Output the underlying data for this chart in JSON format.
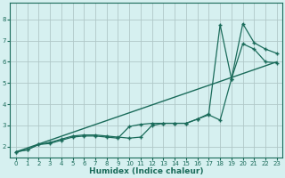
{
  "xlabel": "Humidex (Indice chaleur)",
  "bg_color": "#d6f0f0",
  "grid_color": "#b0c8c8",
  "line_color": "#1a6b5a",
  "xlim": [
    -0.5,
    23.5
  ],
  "ylim": [
    1.5,
    8.8
  ],
  "yticks": [
    2,
    3,
    4,
    5,
    6,
    7,
    8
  ],
  "xticks": [
    0,
    1,
    2,
    3,
    4,
    5,
    6,
    7,
    8,
    9,
    10,
    11,
    12,
    13,
    14,
    15,
    16,
    17,
    18,
    19,
    20,
    21,
    22,
    23
  ],
  "line1_x": [
    0,
    23
  ],
  "line1_y": [
    1.75,
    6.0
  ],
  "line2_x": [
    0,
    1,
    2,
    3,
    4,
    5,
    6,
    7,
    8,
    9,
    10,
    11,
    12,
    13,
    14,
    15,
    16,
    17,
    18,
    19,
    20,
    21,
    22,
    23
  ],
  "line2_y": [
    1.75,
    1.85,
    2.1,
    2.2,
    2.35,
    2.5,
    2.55,
    2.55,
    2.5,
    2.45,
    2.4,
    2.45,
    3.0,
    3.1,
    3.1,
    3.1,
    3.3,
    3.5,
    3.25,
    5.2,
    7.8,
    6.9,
    6.6,
    6.4
  ],
  "line3_x": [
    0,
    1,
    2,
    3,
    4,
    5,
    6,
    7,
    8,
    9,
    10,
    11,
    12,
    13,
    14,
    15,
    16,
    17,
    18,
    19,
    20,
    21,
    22,
    23
  ],
  "line3_y": [
    1.75,
    1.85,
    2.1,
    2.15,
    2.3,
    2.45,
    2.5,
    2.5,
    2.45,
    2.4,
    2.95,
    3.05,
    3.1,
    3.1,
    3.1,
    3.1,
    3.3,
    3.55,
    7.75,
    5.2,
    6.85,
    6.6,
    6.0,
    5.95
  ]
}
